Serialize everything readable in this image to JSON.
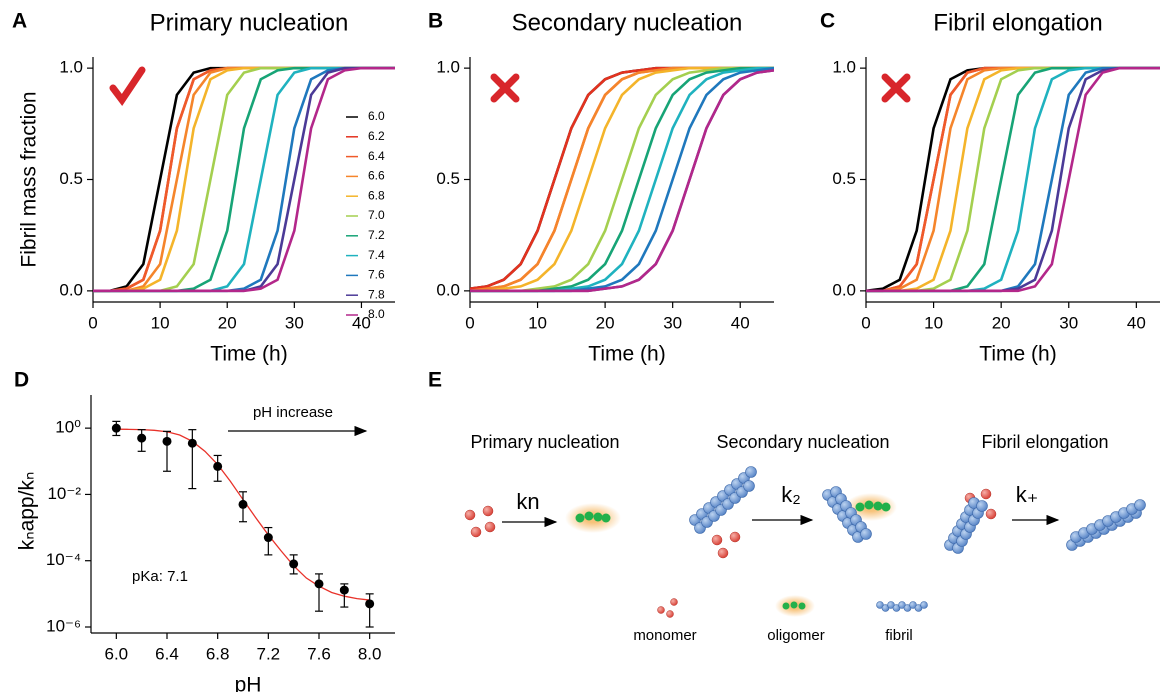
{
  "panel_labels": [
    "A",
    "B",
    "C",
    "D",
    "E"
  ],
  "chart_data": [
    {
      "type": "line",
      "title": "Primary nucleation",
      "xlabel": "Time (h)",
      "ylabel": "Fibril mass fraction",
      "legend": true,
      "x": [
        0,
        2.5,
        5,
        7.5,
        10,
        12.5,
        15,
        17.5,
        20,
        22.5,
        25,
        27.5,
        30,
        32.5,
        35,
        37.5,
        40,
        42.5,
        45
      ],
      "xlim": [
        0,
        45
      ],
      "xticks": [
        0,
        10,
        20,
        30,
        40
      ],
      "ylim": [
        -0.05,
        1.05
      ],
      "yticks": [
        {
          "value": 0,
          "label": "0.0"
        },
        {
          "value": 0.5,
          "label": "0.5"
        },
        {
          "value": 1,
          "label": "1.0"
        }
      ],
      "series": [
        {
          "name": "6.0",
          "color": "#000000",
          "values": [
            0,
            0,
            0.02,
            0.12,
            0.5,
            0.88,
            0.98,
            1,
            1,
            1,
            1,
            1,
            1,
            1,
            1,
            1,
            1,
            1,
            1
          ]
        },
        {
          "name": "6.2",
          "color": "#e3321f",
          "values": [
            0,
            0,
            0.01,
            0.05,
            0.27,
            0.73,
            0.95,
            0.99,
            1,
            1,
            1,
            1,
            1,
            1,
            1,
            1,
            1,
            1,
            1
          ]
        },
        {
          "name": "6.4",
          "color": "#ef5a2a",
          "values": [
            0,
            0,
            0.01,
            0.05,
            0.27,
            0.73,
            0.95,
            0.99,
            1,
            1,
            1,
            1,
            1,
            1,
            1,
            1,
            1,
            1,
            1
          ]
        },
        {
          "name": "6.6",
          "color": "#f5852b",
          "values": [
            0,
            0,
            0,
            0.02,
            0.12,
            0.5,
            0.88,
            0.98,
            1,
            1,
            1,
            1,
            1,
            1,
            1,
            1,
            1,
            1,
            1
          ]
        },
        {
          "name": "6.8",
          "color": "#f4b42a",
          "values": [
            0,
            0,
            0,
            0.01,
            0.05,
            0.27,
            0.73,
            0.95,
            0.99,
            1,
            1,
            1,
            1,
            1,
            1,
            1,
            1,
            1,
            1
          ]
        },
        {
          "name": "7.0",
          "color": "#a4cf4f",
          "values": [
            0,
            0,
            0,
            0,
            0,
            0.02,
            0.12,
            0.5,
            0.88,
            0.98,
            1,
            1,
            1,
            1,
            1,
            1,
            1,
            1,
            1
          ]
        },
        {
          "name": "7.2",
          "color": "#17a476",
          "values": [
            0,
            0,
            0,
            0,
            0,
            0,
            0.01,
            0.05,
            0.27,
            0.73,
            0.95,
            0.99,
            1,
            1,
            1,
            1,
            1,
            1,
            1
          ]
        },
        {
          "name": "7.4",
          "color": "#1fb2bf",
          "values": [
            0,
            0,
            0,
            0,
            0,
            0,
            0,
            0,
            0.02,
            0.12,
            0.5,
            0.88,
            0.98,
            1,
            1,
            1,
            1,
            1,
            1
          ]
        },
        {
          "name": "7.6",
          "color": "#1f78bd",
          "values": [
            0,
            0,
            0,
            0,
            0,
            0,
            0,
            0,
            0,
            0.01,
            0.05,
            0.27,
            0.73,
            0.95,
            0.99,
            1,
            1,
            1,
            1
          ]
        },
        {
          "name": "7.8",
          "color": "#4b3a97",
          "values": [
            0,
            0,
            0,
            0,
            0,
            0,
            0,
            0,
            0,
            0,
            0.02,
            0.12,
            0.5,
            0.88,
            0.98,
            1,
            1,
            1,
            1
          ]
        },
        {
          "name": "8.0",
          "color": "#b3278a",
          "values": [
            0,
            0,
            0,
            0,
            0,
            0,
            0,
            0,
            0,
            0,
            0.01,
            0.05,
            0.27,
            0.73,
            0.95,
            0.99,
            1,
            1,
            1
          ]
        }
      ]
    },
    {
      "type": "line",
      "title": "Secondary nucleation",
      "xlabel": "Time (h)",
      "legend": false,
      "x": [
        0,
        2.5,
        5,
        7.5,
        10,
        12.5,
        15,
        17.5,
        20,
        22.5,
        25,
        27.5,
        30,
        32.5,
        35,
        37.5,
        40,
        42.5,
        45
      ],
      "xlim": [
        0,
        45
      ],
      "xticks": [
        0,
        10,
        20,
        30,
        40
      ],
      "ylim": [
        -0.05,
        1.05
      ],
      "yticks": [
        {
          "value": 0,
          "label": "0.0"
        },
        {
          "value": 0.5,
          "label": "0.5"
        },
        {
          "value": 1,
          "label": "1.0"
        }
      ],
      "series": [
        {
          "color": "#000000",
          "values": [
            0.01,
            0.02,
            0.05,
            0.12,
            0.27,
            0.5,
            0.73,
            0.88,
            0.95,
            0.98,
            0.99,
            1,
            1,
            1,
            1,
            1,
            1,
            1,
            1
          ]
        },
        {
          "color": "#e3321f",
          "values": [
            0.01,
            0.02,
            0.05,
            0.12,
            0.27,
            0.5,
            0.73,
            0.88,
            0.95,
            0.98,
            0.99,
            1,
            1,
            1,
            1,
            1,
            1,
            1,
            1
          ]
        },
        {
          "color": "#ef5a2a",
          "values": [
            0,
            0.01,
            0.02,
            0.05,
            0.12,
            0.27,
            0.5,
            0.73,
            0.88,
            0.95,
            0.98,
            0.99,
            1,
            1,
            1,
            1,
            1,
            1,
            1
          ]
        },
        {
          "color": "#f5852b",
          "values": [
            0,
            0.01,
            0.02,
            0.05,
            0.12,
            0.27,
            0.5,
            0.73,
            0.88,
            0.95,
            0.98,
            0.99,
            1,
            1,
            1,
            1,
            1,
            1,
            1
          ]
        },
        {
          "color": "#f4b42a",
          "values": [
            0,
            0,
            0.01,
            0.02,
            0.05,
            0.12,
            0.27,
            0.5,
            0.73,
            0.88,
            0.95,
            0.98,
            0.99,
            1,
            1,
            1,
            1,
            1,
            1
          ]
        },
        {
          "color": "#a4cf4f",
          "values": [
            0,
            0,
            0,
            0,
            0.01,
            0.02,
            0.05,
            0.12,
            0.27,
            0.5,
            0.73,
            0.88,
            0.95,
            0.98,
            0.99,
            1,
            1,
            1,
            1
          ]
        },
        {
          "color": "#17a476",
          "values": [
            0,
            0,
            0,
            0,
            0,
            0.01,
            0.02,
            0.05,
            0.12,
            0.27,
            0.5,
            0.73,
            0.88,
            0.95,
            0.98,
            0.99,
            1,
            1,
            1
          ]
        },
        {
          "color": "#1fb2bf",
          "values": [
            0,
            0,
            0,
            0,
            0,
            0,
            0.01,
            0.02,
            0.05,
            0.12,
            0.27,
            0.5,
            0.73,
            0.88,
            0.95,
            0.98,
            0.99,
            1,
            1
          ]
        },
        {
          "color": "#1f78bd",
          "values": [
            0,
            0,
            0,
            0,
            0,
            0,
            0,
            0.01,
            0.02,
            0.05,
            0.12,
            0.27,
            0.5,
            0.73,
            0.88,
            0.95,
            0.98,
            0.99,
            1
          ]
        },
        {
          "color": "#4b3a97",
          "values": [
            0,
            0,
            0,
            0,
            0,
            0,
            0,
            0,
            0.01,
            0.02,
            0.05,
            0.12,
            0.27,
            0.5,
            0.73,
            0.88,
            0.95,
            0.98,
            0.99
          ]
        },
        {
          "color": "#b3278a",
          "values": [
            0,
            0,
            0,
            0,
            0,
            0,
            0,
            0,
            0.01,
            0.02,
            0.05,
            0.12,
            0.27,
            0.5,
            0.73,
            0.88,
            0.95,
            0.98,
            0.99
          ]
        }
      ]
    },
    {
      "type": "line",
      "title": "Fibril elongation",
      "xlabel": "Time (h)",
      "legend": false,
      "x": [
        0,
        2.5,
        5,
        7.5,
        10,
        12.5,
        15,
        17.5,
        20,
        22.5,
        25,
        27.5,
        30,
        32.5,
        35,
        37.5,
        40,
        42.5,
        45
      ],
      "xlim": [
        0,
        43.5
      ],
      "xticks": [
        0,
        10,
        20,
        30,
        40
      ],
      "ylim": [
        -0.05,
        1.05
      ],
      "yticks": [
        {
          "value": 0,
          "label": "0.0"
        },
        {
          "value": 0.5,
          "label": "0.5"
        },
        {
          "value": 1,
          "label": "1.0"
        }
      ],
      "series": [
        {
          "color": "#000000",
          "values": [
            0,
            0.01,
            0.05,
            0.27,
            0.73,
            0.95,
            0.99,
            1,
            1,
            1,
            1,
            1,
            1,
            1,
            1,
            1,
            1,
            1,
            1
          ]
        },
        {
          "color": "#e3321f",
          "values": [
            0,
            0,
            0.02,
            0.12,
            0.5,
            0.88,
            0.98,
            1,
            1,
            1,
            1,
            1,
            1,
            1,
            1,
            1,
            1,
            1,
            1
          ]
        },
        {
          "color": "#ef5a2a",
          "values": [
            0,
            0,
            0.02,
            0.12,
            0.5,
            0.88,
            0.98,
            1,
            1,
            1,
            1,
            1,
            1,
            1,
            1,
            1,
            1,
            1,
            1
          ]
        },
        {
          "color": "#f5852b",
          "values": [
            0,
            0,
            0.01,
            0.05,
            0.27,
            0.73,
            0.95,
            0.99,
            1,
            1,
            1,
            1,
            1,
            1,
            1,
            1,
            1,
            1,
            1
          ]
        },
        {
          "color": "#f4b42a",
          "values": [
            0,
            0,
            0,
            0.01,
            0.05,
            0.27,
            0.73,
            0.95,
            0.99,
            1,
            1,
            1,
            1,
            1,
            1,
            1,
            1,
            1,
            1
          ]
        },
        {
          "color": "#a4cf4f",
          "values": [
            0,
            0,
            0,
            0,
            0.01,
            0.05,
            0.27,
            0.73,
            0.95,
            0.99,
            1,
            1,
            1,
            1,
            1,
            1,
            1,
            1,
            1
          ]
        },
        {
          "color": "#17a476",
          "values": [
            0,
            0,
            0,
            0,
            0,
            0,
            0.02,
            0.12,
            0.5,
            0.88,
            0.98,
            1,
            1,
            1,
            1,
            1,
            1,
            1,
            1
          ]
        },
        {
          "color": "#1fb2bf",
          "values": [
            0,
            0,
            0,
            0,
            0,
            0,
            0,
            0.01,
            0.05,
            0.27,
            0.73,
            0.95,
            0.99,
            1,
            1,
            1,
            1,
            1,
            1
          ]
        },
        {
          "color": "#1f78bd",
          "values": [
            0,
            0,
            0,
            0,
            0,
            0,
            0,
            0,
            0,
            0.02,
            0.12,
            0.5,
            0.88,
            0.98,
            1,
            1,
            1,
            1,
            1
          ]
        },
        {
          "color": "#4b3a97",
          "values": [
            0,
            0,
            0,
            0,
            0,
            0,
            0,
            0,
            0,
            0.01,
            0.05,
            0.27,
            0.73,
            0.95,
            0.99,
            1,
            1,
            1,
            1
          ]
        },
        {
          "color": "#b3278a",
          "values": [
            0,
            0,
            0,
            0,
            0,
            0,
            0,
            0,
            0,
            0,
            0.02,
            0.12,
            0.5,
            0.88,
            0.98,
            1,
            1,
            1,
            1
          ]
        }
      ]
    },
    {
      "type": "scatter",
      "xlabel": "pH",
      "ylabel": "kₙapp/kₙ",
      "log_y": true,
      "color": "#000000",
      "fit_color": "#e8322a",
      "xlim": [
        5.8,
        8.2
      ],
      "xticks": [
        {
          "value": 6,
          "label": "6.0"
        },
        {
          "value": 6.4,
          "label": "6.4"
        },
        {
          "value": 6.8,
          "label": "6.8"
        },
        {
          "value": 7.2,
          "label": "7.2"
        },
        {
          "value": 7.6,
          "label": "7.6"
        },
        {
          "value": 8,
          "label": "8.0"
        }
      ],
      "ylim": [
        1e-06,
        10
      ],
      "yticks": [
        {
          "value": 1,
          "label": "10⁰"
        },
        {
          "value": 0.01,
          "label": "10⁻²"
        },
        {
          "value": 0.0001,
          "label": "10⁻⁴"
        },
        {
          "value": 1e-06,
          "label": "10⁻⁶"
        }
      ],
      "x": [
        6.0,
        6.2,
        6.4,
        6.6,
        6.8,
        7.0,
        7.2,
        7.4,
        7.6,
        7.8,
        8.0
      ],
      "values": [
        1,
        0.5,
        0.4,
        0.35,
        0.07,
        0.005,
        0.0005,
        8e-05,
        2e-05,
        1.3e-05,
        5e-06
      ],
      "lower": [
        0.6,
        0.2,
        0.05,
        0.015,
        0.025,
        0.0015,
        0.00015,
        4e-05,
        3e-06,
        4e-06,
        1e-06
      ],
      "upper": [
        1.6,
        0.9,
        0.8,
        0.9,
        0.15,
        0.012,
        0.001,
        0.00015,
        4e-05,
        2e-05,
        1e-05
      ],
      "fit_x": [
        6.0,
        6.1,
        6.2,
        6.3,
        6.4,
        6.5,
        6.6,
        6.7,
        6.8,
        6.9,
        7.0,
        7.1,
        7.2,
        7.3,
        7.4,
        7.5,
        7.6,
        7.7,
        7.8,
        7.9,
        8.0
      ],
      "fit_values": [
        0.93,
        0.92,
        0.9,
        0.86,
        0.78,
        0.62,
        0.4,
        0.2,
        0.08,
        0.025,
        0.007,
        0.002,
        0.0006,
        0.0002,
        7e-05,
        3e-05,
        1.7e-05,
        1.1e-05,
        8.5e-06,
        7.2e-06,
        6.5e-06
      ],
      "annotations": [
        "pH increase",
        "pKa: 7.1"
      ]
    }
  ],
  "diagram": {
    "steps": [
      {
        "title": "Primary nucleation",
        "rate": "kn"
      },
      {
        "title": "Secondary nucleation",
        "rate": "k₂"
      },
      {
        "title": "Fibril elongation",
        "rate": "k₊"
      }
    ],
    "legend": [
      "monomer",
      "oligomer",
      "fibril"
    ]
  }
}
